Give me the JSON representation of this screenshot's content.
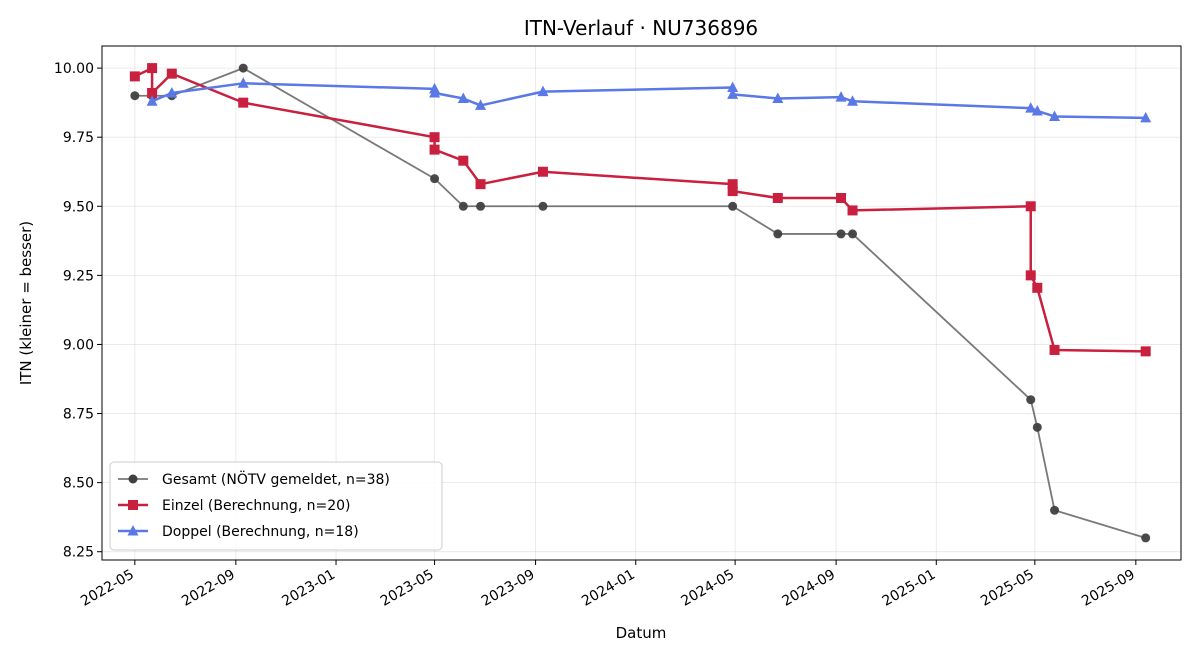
{
  "chart_data": {
    "type": "line",
    "title": "ITN-Verlauf · NU736896",
    "xlabel": "Datum",
    "ylabel": "ITN  (kleiner = besser)",
    "x_ticks": [
      "2022-05",
      "2022-09",
      "2023-01",
      "2023-05",
      "2023-09",
      "2024-01",
      "2024-05",
      "2024-09",
      "2025-01",
      "2025-05",
      "2025-09"
    ],
    "y_ticks": [
      "8.25",
      "8.50",
      "8.75",
      "9.00",
      "9.25",
      "9.50",
      "9.75",
      "10.00"
    ],
    "xlim": [
      "2022-03-22",
      "2025-10-26"
    ],
    "ylim": [
      8.22,
      10.08
    ],
    "grid": true,
    "legend_position": "lower-left",
    "series": [
      {
        "name": "Gesamt (NÖTV gemeldet, n=38)",
        "color": "#404040",
        "marker": "circle",
        "points": [
          [
            "2022-05-01",
            9.9
          ],
          [
            "2022-05-22",
            9.9
          ],
          [
            "2022-06-15",
            9.9
          ],
          [
            "2022-09-10",
            10.0
          ],
          [
            "2023-05-01",
            9.6
          ],
          [
            "2023-06-05",
            9.5
          ],
          [
            "2023-06-26",
            9.5
          ],
          [
            "2023-09-10",
            9.5
          ],
          [
            "2024-04-28",
            9.5
          ],
          [
            "2024-06-22",
            9.4
          ],
          [
            "2024-09-07",
            9.4
          ],
          [
            "2024-09-21",
            9.4
          ],
          [
            "2025-04-26",
            8.8
          ],
          [
            "2025-05-04",
            8.7
          ],
          [
            "2025-05-25",
            8.4
          ],
          [
            "2025-09-13",
            8.3
          ]
        ]
      },
      {
        "name": "Einzel (Berechnung, n=20)",
        "color": "#c8203e",
        "marker": "square",
        "points": [
          [
            "2022-05-01",
            9.97
          ],
          [
            "2022-05-22",
            10.0
          ],
          [
            "2022-05-22",
            9.91
          ],
          [
            "2022-06-15",
            9.98
          ],
          [
            "2022-09-10",
            9.875
          ],
          [
            "2023-05-01",
            9.75
          ],
          [
            "2023-05-01",
            9.705
          ],
          [
            "2023-06-05",
            9.665
          ],
          [
            "2023-06-26",
            9.58
          ],
          [
            "2023-09-10",
            9.625
          ],
          [
            "2024-04-28",
            9.58
          ],
          [
            "2024-04-28",
            9.555
          ],
          [
            "2024-06-22",
            9.53
          ],
          [
            "2024-09-07",
            9.53
          ],
          [
            "2024-09-21",
            9.485
          ],
          [
            "2025-04-26",
            9.5
          ],
          [
            "2025-04-26",
            9.25
          ],
          [
            "2025-05-04",
            9.205
          ],
          [
            "2025-05-25",
            8.98
          ],
          [
            "2025-09-13",
            8.975
          ]
        ]
      },
      {
        "name": "Doppel (Berechnung, n=18)",
        "color": "#5a78e6",
        "marker": "triangle",
        "points": [
          [
            "2022-05-22",
            9.88
          ],
          [
            "2022-06-15",
            9.91
          ],
          [
            "2022-09-10",
            9.945
          ],
          [
            "2023-05-01",
            9.925
          ],
          [
            "2023-05-01",
            9.91
          ],
          [
            "2023-06-05",
            9.89
          ],
          [
            "2023-06-26",
            9.865
          ],
          [
            "2023-09-10",
            9.915
          ],
          [
            "2024-04-28",
            9.93
          ],
          [
            "2024-04-28",
            9.905
          ],
          [
            "2024-06-22",
            9.89
          ],
          [
            "2024-09-07",
            9.895
          ],
          [
            "2024-09-21",
            9.88
          ],
          [
            "2025-04-26",
            9.855
          ],
          [
            "2025-05-04",
            9.845
          ],
          [
            "2025-05-25",
            9.825
          ],
          [
            "2025-09-13",
            9.82
          ]
        ]
      }
    ]
  }
}
